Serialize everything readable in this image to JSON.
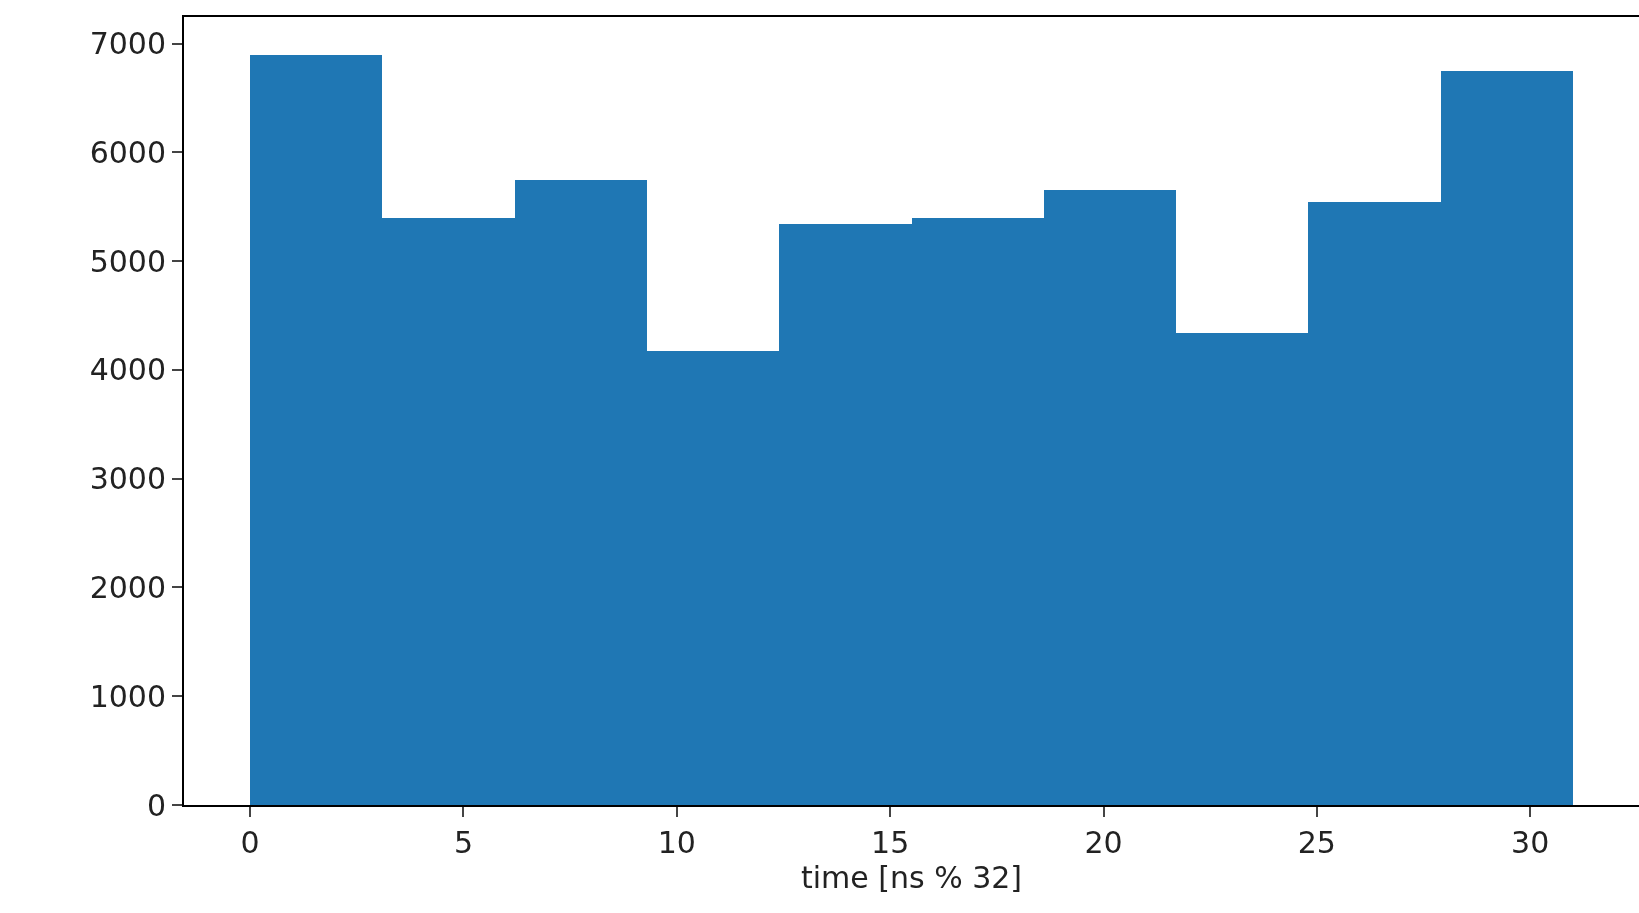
{
  "chart_data": {
    "type": "histogram",
    "xlabel": "time [ns % 32]",
    "bins": [
      0,
      3.1,
      6.2,
      9.3,
      12.4,
      15.5,
      18.6,
      21.7,
      24.8,
      27.9,
      31
    ],
    "values": [
      6900,
      5400,
      5750,
      4170,
      5340,
      5400,
      5650,
      4340,
      5540,
      6750
    ],
    "color": "#1f77b4",
    "xlim": [
      -1.55,
      32.55
    ],
    "xticks": [
      0,
      5,
      10,
      15,
      20,
      25,
      30
    ],
    "ylim": [
      0,
      7245
    ],
    "yticks": [
      0,
      1000,
      2000,
      3000,
      4000,
      5000,
      6000,
      7000
    ],
    "grid": false
  }
}
